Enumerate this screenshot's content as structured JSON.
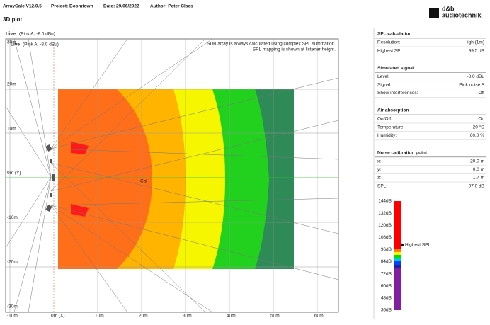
{
  "header": {
    "app": "ArrayCalc V12.0.5",
    "project": "Project: Boomtown",
    "date": "Date: 29/06/2022",
    "author": "Author: Peter Claes",
    "logo_top": "d&b",
    "logo_bottom": "audiotechnik"
  },
  "page_title": "3D plot",
  "plot": {
    "title": "Live",
    "subtitle": "(Pink A, -8.0 dBu)",
    "inner_title": "Live",
    "inner_subtitle": "(Pink A, -8.0 dBu)",
    "note": [
      "SUB array is always calculated using complex SPL summation.",
      "SPL mapping is shown at listener height."
    ],
    "y_labels": [
      "30m",
      "20m",
      "10m",
      "0m (Y)",
      "-10m",
      "-20m",
      "-30m"
    ],
    "x_labels": [
      "-10m",
      "0m (X)",
      "10m",
      "20m",
      "30m",
      "40m",
      "50m",
      "60m"
    ],
    "cal_label": "Cal"
  },
  "panel": {
    "sections": [
      {
        "title": "SPL calculation",
        "rows": [
          [
            "Resolution:",
            "High (1m)"
          ],
          [
            "Highest SPL:",
            "99.5 dB"
          ]
        ]
      },
      {
        "title": "Simulated signal",
        "rows": [
          [
            "Level:",
            "-8.0 dBu"
          ],
          [
            "Signal:",
            "Pink noise A"
          ],
          [
            "Show interferences:",
            "Off"
          ]
        ]
      },
      {
        "title": "Air absorption",
        "rows": [
          [
            "On/Off:",
            "On"
          ],
          [
            "Temperature:",
            "20 °C"
          ],
          [
            "Humidity:",
            "60.0 %"
          ]
        ]
      },
      {
        "title": "Noise calibration point",
        "rows": [
          [
            "x:",
            "20.0 m"
          ],
          [
            "y:",
            "0.0 m"
          ],
          [
            "z:",
            "1.7 m"
          ],
          [
            "SPL:",
            "97.0 dB"
          ]
        ]
      }
    ]
  },
  "color_scale": {
    "labels": [
      "144dB",
      "132dB",
      "120dB",
      "108dB",
      "96dB",
      "84dB",
      "72dB",
      "60dB",
      "48dB",
      "36dB"
    ],
    "marker": "Highest SPL"
  }
}
